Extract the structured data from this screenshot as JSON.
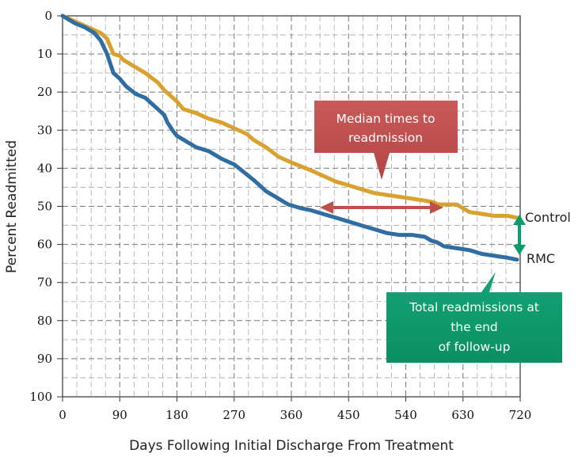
{
  "chart_data": {
    "type": "line",
    "xlabel": "Days Following Initial Discharge From Treatment",
    "ylabel": "Percent Readmitted",
    "xlim": [
      0,
      720
    ],
    "ylim": [
      0,
      100
    ],
    "y_inverted": true,
    "x_ticks": [
      0,
      90,
      180,
      270,
      360,
      450,
      540,
      630,
      720
    ],
    "y_ticks": [
      0,
      10,
      20,
      30,
      40,
      50,
      60,
      70,
      80,
      90,
      100
    ],
    "grid": true,
    "series": [
      {
        "name": "Control",
        "color": "#d9a22e",
        "x": [
          0,
          20,
          40,
          60,
          70,
          75,
          80,
          90,
          95,
          110,
          130,
          150,
          160,
          170,
          180,
          190,
          210,
          230,
          250,
          270,
          290,
          300,
          320,
          340,
          360,
          375,
          390,
          410,
          430,
          450,
          470,
          490,
          510,
          530,
          550,
          570,
          585,
          590,
          600,
          620,
          630,
          640,
          660,
          680,
          700,
          715
        ],
        "y": [
          0,
          1.5,
          3,
          4.5,
          6,
          8,
          10,
          10.5,
          11.5,
          13,
          15,
          17.5,
          19.5,
          21,
          22.5,
          24.5,
          25.5,
          27,
          28,
          29.5,
          31,
          32.5,
          34.5,
          37,
          38.5,
          39.5,
          40.5,
          42,
          43.5,
          44.5,
          45.5,
          46.5,
          47,
          47.5,
          48,
          48.5,
          49,
          49.5,
          49.5,
          49.5,
          50.5,
          51.5,
          52,
          52.5,
          52.5,
          53
        ]
      },
      {
        "name": "RMC",
        "color": "#2f6da3",
        "x": [
          0,
          10,
          20,
          35,
          50,
          60,
          70,
          80,
          90,
          100,
          115,
          130,
          140,
          150,
          160,
          165,
          175,
          180,
          195,
          210,
          230,
          250,
          270,
          285,
          300,
          310,
          320,
          340,
          355,
          365,
          375,
          390,
          410,
          430,
          450,
          470,
          490,
          510,
          530,
          550,
          570,
          580,
          590,
          600,
          620,
          640,
          660,
          680,
          700,
          715
        ],
        "y": [
          0,
          1,
          2,
          3,
          4.5,
          6.5,
          10,
          15,
          16.5,
          18.5,
          20.5,
          21.5,
          23,
          24.5,
          26,
          28,
          30.5,
          31.5,
          33,
          34.5,
          35.5,
          37.5,
          39,
          41,
          43,
          44.5,
          46,
          48,
          49.5,
          50,
          50.5,
          51,
          52,
          53,
          54,
          55,
          56,
          57,
          57.5,
          57.5,
          58,
          59,
          59.5,
          60.5,
          61,
          61.5,
          62.5,
          63,
          63.5,
          64
        ]
      }
    ],
    "annotations": [
      {
        "name": "median",
        "text_lines": [
          "Median times to",
          "readmission"
        ],
        "color": "#c0504d"
      },
      {
        "name": "total",
        "text_lines": [
          "Total readmissions at",
          "the end",
          "of follow-up"
        ],
        "color": "#0f9c6c"
      }
    ]
  }
}
